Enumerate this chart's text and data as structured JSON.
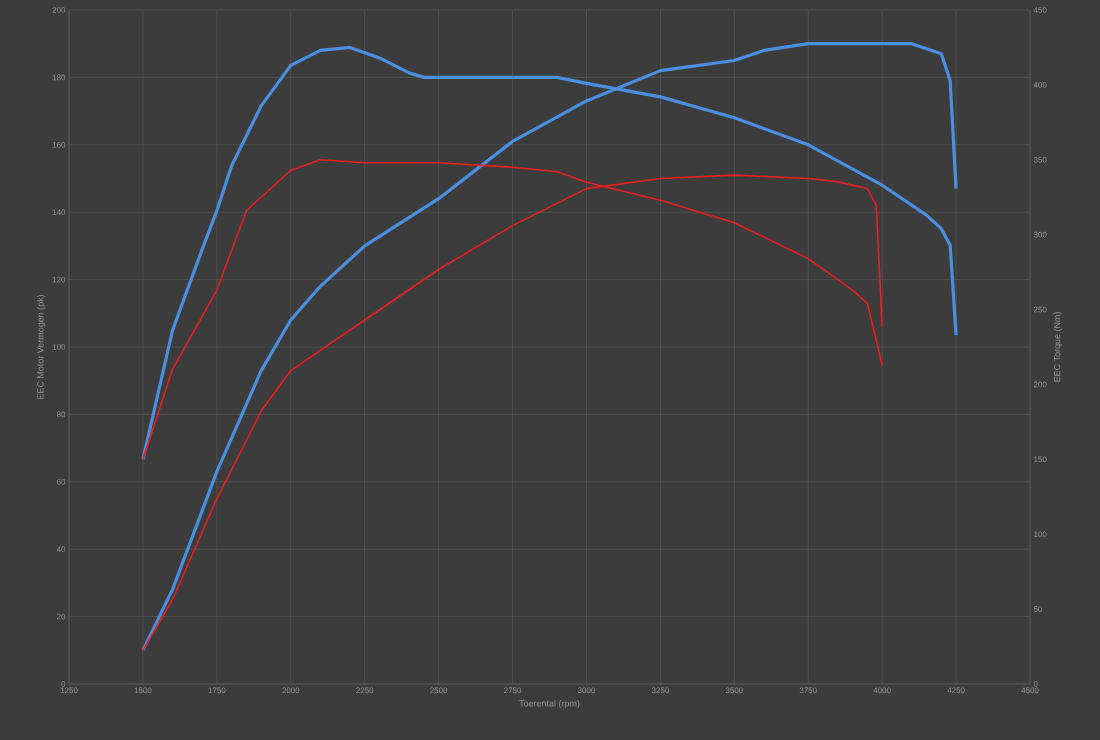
{
  "chart_data": {
    "type": "line",
    "xlabel": "Toerental (rpm)",
    "ylabel": "EEC Motor Vermogen (pk)",
    "y2label": "EEC Torque (Nm)",
    "xlim": [
      1250,
      4500
    ],
    "xticks": [
      1250,
      1500,
      1750,
      2000,
      2250,
      2500,
      2750,
      3000,
      3250,
      3500,
      3750,
      4000,
      4250,
      4500
    ],
    "ylim": [
      0,
      200
    ],
    "yticks": [
      0,
      20,
      40,
      60,
      80,
      100,
      120,
      140,
      160,
      180,
      200
    ],
    "y2lim": [
      0,
      450
    ],
    "y2ticks": [
      0,
      50,
      100,
      150,
      200,
      250,
      300,
      350,
      400,
      450
    ],
    "grid": true,
    "marker": "none",
    "line_style": "solid",
    "series": [
      {
        "color": "#4a8fe0",
        "axis": "y2",
        "x": [
          1500,
          1600,
          1700,
          1750,
          1800,
          1900,
          2000,
          2100,
          2200,
          2300,
          2400,
          2450,
          2500,
          2750,
          2900,
          3000,
          3250,
          3500,
          3750,
          4000,
          4150,
          4200,
          4230,
          4250
        ],
        "values": [
          150,
          236,
          290,
          316,
          346,
          386,
          413,
          423,
          425,
          418,
          408,
          405,
          405,
          405,
          405,
          401,
          392,
          378,
          360,
          333,
          313,
          304,
          293,
          233
        ]
      },
      {
        "color": "#e82020",
        "axis": "y2",
        "x": [
          1500,
          1600,
          1750,
          1850,
          2000,
          2100,
          2250,
          2500,
          2750,
          2900,
          3000,
          3250,
          3500,
          3750,
          3900,
          3950,
          4000
        ],
        "values": [
          150,
          210,
          263,
          316,
          343,
          350,
          348,
          348,
          345,
          342,
          335,
          323,
          308,
          284,
          263,
          254,
          213
        ]
      },
      {
        "color": "#4a8fe0",
        "x": [
          1500,
          1600,
          1750,
          1900,
          2000,
          2100,
          2250,
          2500,
          2750,
          3000,
          3250,
          3500,
          3600,
          3750,
          4000,
          4100,
          4200,
          4230,
          4250
        ],
        "values": [
          10,
          28,
          63,
          93,
          108,
          118,
          130,
          144,
          161,
          173,
          182,
          185,
          188,
          190,
          190,
          190,
          187,
          179,
          147
        ]
      },
      {
        "color": "#e82020",
        "x": [
          1500,
          1600,
          1750,
          1900,
          2000,
          2250,
          2500,
          2750,
          3000,
          3250,
          3500,
          3750,
          3850,
          3950,
          3980,
          4000
        ],
        "values": [
          10,
          25,
          55,
          81,
          93,
          108,
          123,
          136,
          147,
          150,
          151,
          150,
          149,
          147,
          142,
          106
        ]
      }
    ]
  }
}
